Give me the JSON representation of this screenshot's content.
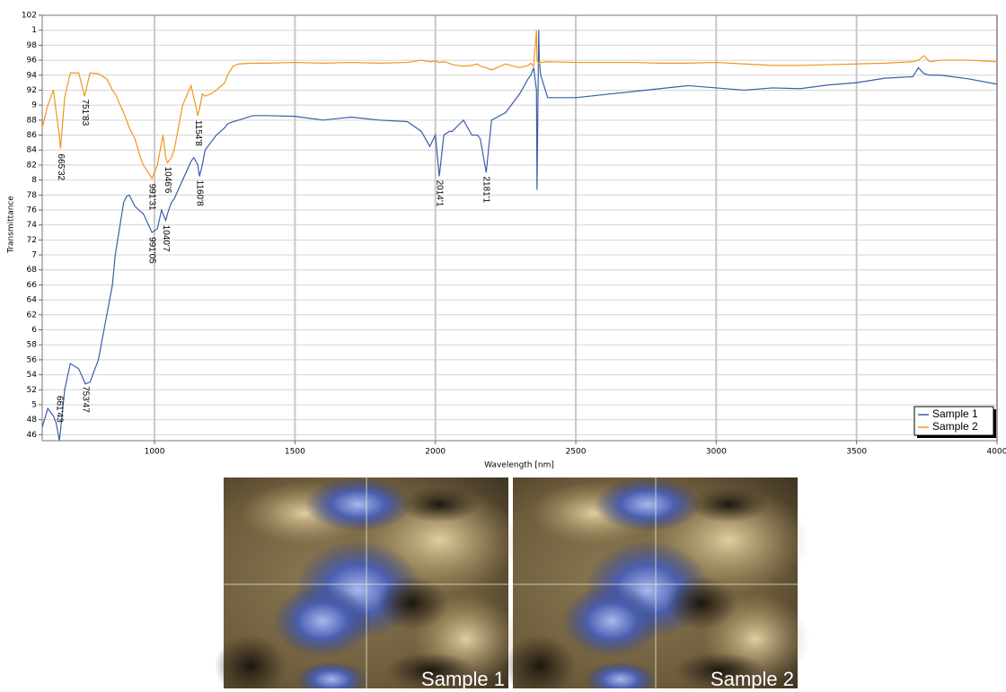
{
  "chart_data": {
    "type": "line",
    "x_label": "Wavelength [nm]",
    "y_label": "Transmittance",
    "x": [
      600,
      620,
      640,
      650,
      661,
      665,
      680,
      700,
      730,
      751,
      753,
      770,
      800,
      830,
      850,
      860,
      890,
      900,
      910,
      930,
      950,
      960,
      991,
      1010,
      1025,
      1030,
      1040,
      1046,
      1060,
      1070,
      1100,
      1130,
      1140,
      1154,
      1160,
      1170,
      1180,
      1200,
      1220,
      1250,
      1260,
      1280,
      1300,
      1350,
      1400,
      1500,
      1600,
      1700,
      1800,
      1900,
      1950,
      1980,
      2000,
      2014,
      2030,
      2050,
      2060,
      2100,
      2130,
      2150,
      2160,
      2181,
      2200,
      2250,
      2300,
      2330,
      2340,
      2350,
      2360,
      2362,
      2368,
      2370,
      2375,
      2400,
      2500,
      2600,
      2700,
      2800,
      2900,
      3000,
      3100,
      3200,
      3300,
      3400,
      3500,
      3600,
      3700,
      3720,
      3740,
      3760,
      3800,
      3900,
      4000
    ],
    "series": [
      {
        "name": "Sample 1",
        "color": "#3a5ea8",
        "values": [
          47,
          49.5,
          48.5,
          47.5,
          45.2,
          46.5,
          52,
          55.5,
          54.8,
          53,
          52.8,
          53,
          56,
          62,
          66,
          70,
          77,
          77.8,
          78,
          76.5,
          75.8,
          75.5,
          73,
          73.5,
          76,
          75.5,
          74.6,
          75.5,
          77,
          77.5,
          80,
          82.5,
          83,
          82,
          80.5,
          82,
          84,
          85,
          86,
          87,
          87.5,
          87.8,
          88,
          88.6,
          88.6,
          88.5,
          88,
          88.4,
          88,
          87.8,
          86.5,
          84.5,
          86,
          80.5,
          86,
          86.5,
          86.5,
          88,
          86,
          86,
          85.5,
          81,
          88,
          89,
          91.5,
          93.5,
          94,
          95,
          92,
          78.7,
          100,
          96,
          94,
          91,
          91,
          91.4,
          91.8,
          92.2,
          92.6,
          92.3,
          92,
          92.3,
          92.2,
          92.7,
          93,
          93.6,
          93.8,
          95,
          94.2,
          94,
          94,
          93.5,
          92.8
        ]
      },
      {
        "name": "Sample 2",
        "color": "#f0961e",
        "values": [
          87,
          90,
          92,
          89,
          86,
          84.2,
          91,
          94.3,
          94.3,
          91.2,
          91.5,
          94.3,
          94.2,
          93.5,
          92,
          91.5,
          89,
          88,
          87,
          85.5,
          83,
          82,
          80.2,
          82,
          85,
          86,
          83,
          82.3,
          83,
          84,
          90,
          92.6,
          91,
          88.6,
          89.5,
          91.5,
          91.2,
          91.5,
          92,
          93,
          94,
          95.2,
          95.5,
          95.6,
          95.6,
          95.7,
          95.6,
          95.7,
          95.6,
          95.7,
          96,
          95.8,
          95.9,
          95.7,
          95.8,
          95.6,
          95.4,
          95.2,
          95.3,
          95.5,
          95.2,
          95,
          94.7,
          95.5,
          95,
          95.3,
          95.6,
          95.2,
          100,
          96,
          95.5,
          95.7,
          95.7,
          95.8,
          95.7,
          95.7,
          95.7,
          95.6,
          95.6,
          95.7,
          95.5,
          95.3,
          95.3,
          95.4,
          95.5,
          95.6,
          95.8,
          96,
          96.6,
          95.8,
          96,
          96,
          95.8
        ]
      }
    ],
    "xlim": [
      600,
      4000
    ],
    "xticks": [
      1000,
      1500,
      2000,
      2500,
      3000,
      3500,
      4000
    ],
    "ylim": [
      45.2,
      102
    ],
    "yticks": [
      46,
      48,
      {
        "value": 50,
        "label": "5"
      },
      52,
      54,
      56,
      58,
      {
        "value": 60,
        "label": "6"
      },
      62,
      64,
      66,
      68,
      {
        "value": 70,
        "label": "7"
      },
      72,
      74,
      76,
      78,
      {
        "value": 80,
        "label": "8"
      },
      82,
      84,
      86,
      88,
      {
        "value": 90,
        "label": "9"
      },
      92,
      94,
      96,
      98,
      {
        "value": 100,
        "label": "1"
      },
      102
    ],
    "grid": true,
    "legend": "lower right",
    "annotations": [
      {
        "text": "665'32",
        "x": 665.32,
        "y": 83.5
      },
      {
        "text": "751'83",
        "x": 751.83,
        "y": 90.8
      },
      {
        "text": "991'31",
        "x": 991.31,
        "y": 79.5
      },
      {
        "text": "1046'6",
        "x": 1046.6,
        "y": 81.8
      },
      {
        "text": "1154'8",
        "x": 1154.8,
        "y": 88
      },
      {
        "text": "661'43",
        "x": 661.43,
        "y": 51.2
      },
      {
        "text": "753'47",
        "x": 753.47,
        "y": 52.5
      },
      {
        "text": "991'05",
        "x": 991.05,
        "y": 72.4
      },
      {
        "text": "1040'7",
        "x": 1040.7,
        "y": 74
      },
      {
        "text": "1160'8",
        "x": 1160.8,
        "y": 80
      },
      {
        "text": "2014'1",
        "x": 2014.1,
        "y": 80
      },
      {
        "text": "2181'1",
        "x": 2181.1,
        "y": 80.5
      }
    ]
  },
  "images": [
    {
      "caption": "Sample 1"
    },
    {
      "caption": "Sample 2"
    }
  ]
}
